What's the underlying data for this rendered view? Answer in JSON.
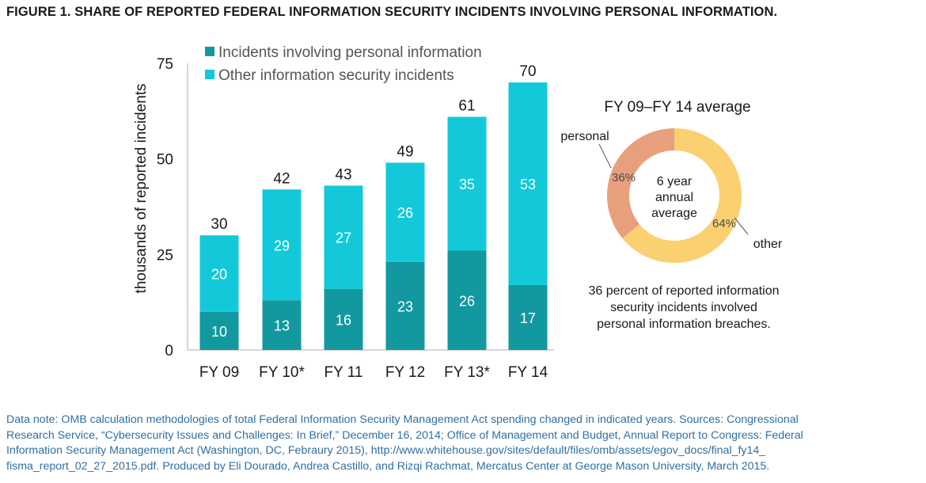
{
  "figure_title": "FIGURE 1. SHARE OF REPORTED FEDERAL INFORMATION SECURITY INCIDENTS INVOLVING PERSONAL INFORMATION.",
  "colors": {
    "title": "#1f78b4",
    "personal_bar": "#12999f",
    "other_bar": "#13c9d9",
    "pie_personal": "#e8a07c",
    "pie_other": "#fad070",
    "note": "#2f6fa5"
  },
  "chart_data": [
    {
      "type": "bar",
      "stacked": true,
      "categories": [
        "FY 09",
        "FY 10*",
        "FY 11",
        "FY 12",
        "FY 13*",
        "FY 14"
      ],
      "series": [
        {
          "name": "Incidents involving personal information",
          "values": [
            10,
            13,
            16,
            23,
            26,
            17
          ]
        },
        {
          "name": "Other information security incidents",
          "values": [
            20,
            29,
            27,
            26,
            35,
            53
          ]
        }
      ],
      "totals": [
        30,
        42,
        43,
        49,
        61,
        70
      ],
      "ylabel": "thousands of reported incidents",
      "yticks": [
        0,
        25,
        50,
        75
      ],
      "ylim": [
        0,
        75
      ],
      "legend": "top-left",
      "grid": false
    },
    {
      "type": "pie",
      "donut": true,
      "title": "FY 09–FY 14 average",
      "center_text": [
        "6 year",
        "annual",
        "average"
      ],
      "slices": [
        {
          "label": "personal",
          "value": 36,
          "value_label": "36%"
        },
        {
          "label": "other",
          "value": 64,
          "value_label": "64%"
        }
      ],
      "caption": [
        "36 percent of reported information",
        "security incidents involved",
        "personal information breaches."
      ]
    }
  ],
  "data_note": [
    "Data note: OMB calculation methodologies of total Federal Information Security Management Act spending changed in indicated years. Sources: Congressional",
    "Research Service, “Cybersecurity Issues and Challenges: In Brief,” December 16, 2014; Office of Management and Budget, Annual Report to Congress: Federal",
    "Information Security Management Act (Washington, DC, Febraury 2015), http://www.whitehouse.gov/sites/default/files/omb/assets/egov_docs/final_fy14_",
    "fisma_report_02_27_2015.pdf. Produced by Eli Dourado, Andrea Castillo, and Rizqi Rachmat, Mercatus Center at George Mason University, March 2015."
  ]
}
